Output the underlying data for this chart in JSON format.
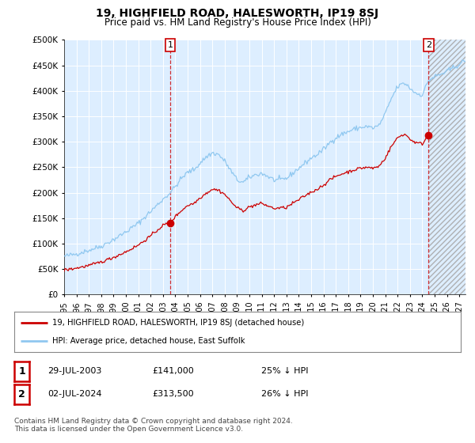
{
  "title": "19, HIGHFIELD ROAD, HALESWORTH, IP19 8SJ",
  "subtitle": "Price paid vs. HM Land Registry's House Price Index (HPI)",
  "ylim": [
    0,
    500000
  ],
  "xlim_start": 1995.0,
  "xlim_end": 2027.5,
  "hpi_color": "#90c8f0",
  "price_color": "#cc0000",
  "plot_bg_color": "#ddeeff",
  "legend_label_red": "19, HIGHFIELD ROAD, HALESWORTH, IP19 8SJ (detached house)",
  "legend_label_blue": "HPI: Average price, detached house, East Suffolk",
  "sale1_date": "29-JUL-2003",
  "sale1_price": "£141,000",
  "sale1_note": "25% ↓ HPI",
  "sale2_date": "02-JUL-2024",
  "sale2_price": "£313,500",
  "sale2_note": "26% ↓ HPI",
  "footer": "Contains HM Land Registry data © Crown copyright and database right 2024.\nThis data is licensed under the Open Government Licence v3.0.",
  "hatch_start": 2024.583,
  "marker1_x": 2003.58,
  "marker1_y": 141000,
  "marker2_x": 2024.5,
  "marker2_y": 313500
}
